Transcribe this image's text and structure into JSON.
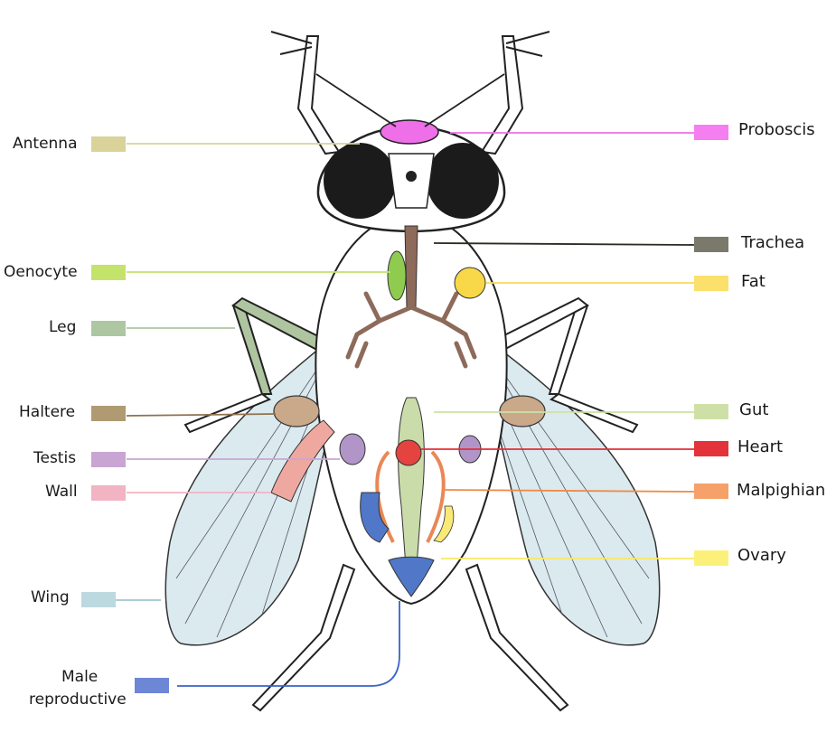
{
  "labels": {
    "antenna": {
      "text": "Antenna",
      "color": "#d9d39a"
    },
    "oenocyte": {
      "text": "Oenocyte",
      "color": "#c4e36b"
    },
    "leg": {
      "text": "Leg",
      "color": "#adc7a2"
    },
    "haltere": {
      "text": "Haltere",
      "color": "#b09a72"
    },
    "testis": {
      "text": "Testis",
      "color": "#c9a5d3"
    },
    "wall": {
      "text": "Wall",
      "color": "#f2b3c3"
    },
    "wing": {
      "text": "Wing",
      "color": "#bcd9e0"
    },
    "male_reproductive": {
      "line1": "Male",
      "line2": "reproductive",
      "color": "#6d86d6"
    },
    "proboscis": {
      "text": "Proboscis",
      "color": "#f57ff0"
    },
    "trachea": {
      "text": "Trachea",
      "color": "#7b796b"
    },
    "fat": {
      "text": "Fat",
      "color": "#fbe06b"
    },
    "gut": {
      "text": "Gut",
      "color": "#cfe0a6"
    },
    "heart": {
      "text": "Heart",
      "color": "#e4323a"
    },
    "malpighian": {
      "text": "Malpighian",
      "color": "#f5a169"
    },
    "ovary": {
      "text": "Ovary",
      "color": "#fbf17a"
    }
  }
}
